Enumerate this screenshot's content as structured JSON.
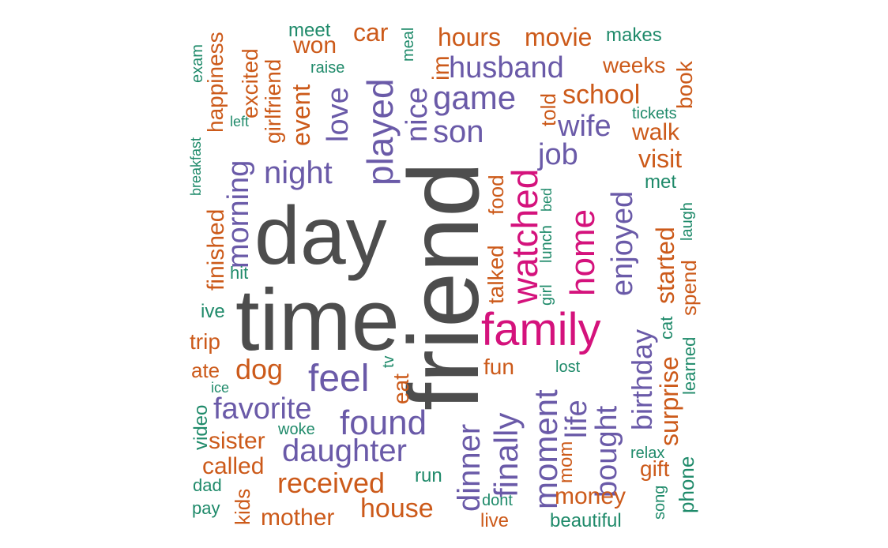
{
  "palette": {
    "gray": "#4d4d4d",
    "magenta": "#d4127c",
    "purple": "#6a5aa8",
    "orange": "#cc5a1a",
    "green": "#1f8a6a"
  },
  "words": [
    {
      "text": "friend",
      "color": "gray"
    },
    {
      "text": "time",
      "color": "gray"
    },
    {
      "text": "day",
      "color": "gray"
    },
    {
      "text": "family",
      "color": "magenta"
    },
    {
      "text": "watched",
      "color": "magenta"
    },
    {
      "text": "home",
      "color": "magenta"
    },
    {
      "text": "played",
      "color": "purple"
    },
    {
      "text": "night",
      "color": "purple"
    },
    {
      "text": "love",
      "color": "purple"
    },
    {
      "text": "nice",
      "color": "purple"
    },
    {
      "text": "game",
      "color": "purple"
    },
    {
      "text": "son",
      "color": "purple"
    },
    {
      "text": "husband",
      "color": "purple"
    },
    {
      "text": "wife",
      "color": "purple"
    },
    {
      "text": "job",
      "color": "purple"
    },
    {
      "text": "enjoyed",
      "color": "purple"
    },
    {
      "text": "morning",
      "color": "purple"
    },
    {
      "text": "feel",
      "color": "purple"
    },
    {
      "text": "found",
      "color": "purple"
    },
    {
      "text": "favorite",
      "color": "purple"
    },
    {
      "text": "daughter",
      "color": "purple"
    },
    {
      "text": "dinner",
      "color": "purple"
    },
    {
      "text": "finally",
      "color": "purple"
    },
    {
      "text": "moment",
      "color": "purple"
    },
    {
      "text": "life",
      "color": "purple"
    },
    {
      "text": "bought",
      "color": "purple"
    },
    {
      "text": "birthday",
      "color": "purple"
    },
    {
      "text": "car",
      "color": "orange"
    },
    {
      "text": "hours",
      "color": "orange"
    },
    {
      "text": "movie",
      "color": "orange"
    },
    {
      "text": "won",
      "color": "orange"
    },
    {
      "text": "weeks",
      "color": "orange"
    },
    {
      "text": "school",
      "color": "orange"
    },
    {
      "text": "book",
      "color": "orange"
    },
    {
      "text": "happiness",
      "color": "orange"
    },
    {
      "text": "excited",
      "color": "orange"
    },
    {
      "text": "girlfriend",
      "color": "orange"
    },
    {
      "text": "event",
      "color": "orange"
    },
    {
      "text": "im",
      "color": "orange"
    },
    {
      "text": "told",
      "color": "orange"
    },
    {
      "text": "walk",
      "color": "orange"
    },
    {
      "text": "visit",
      "color": "orange"
    },
    {
      "text": "finished",
      "color": "orange"
    },
    {
      "text": "food",
      "color": "orange"
    },
    {
      "text": "talked",
      "color": "orange"
    },
    {
      "text": "started",
      "color": "orange"
    },
    {
      "text": "spend",
      "color": "orange"
    },
    {
      "text": "trip",
      "color": "orange"
    },
    {
      "text": "ate",
      "color": "orange"
    },
    {
      "text": "dog",
      "color": "orange"
    },
    {
      "text": "eat",
      "color": "orange"
    },
    {
      "text": "fun",
      "color": "orange"
    },
    {
      "text": "surprise",
      "color": "orange"
    },
    {
      "text": "sister",
      "color": "orange"
    },
    {
      "text": "called",
      "color": "orange"
    },
    {
      "text": "received",
      "color": "orange"
    },
    {
      "text": "house",
      "color": "orange"
    },
    {
      "text": "mother",
      "color": "orange"
    },
    {
      "text": "kids",
      "color": "orange"
    },
    {
      "text": "mom",
      "color": "orange"
    },
    {
      "text": "money",
      "color": "orange"
    },
    {
      "text": "gift",
      "color": "orange"
    },
    {
      "text": "live",
      "color": "orange"
    },
    {
      "text": "meet",
      "color": "green"
    },
    {
      "text": "meal",
      "color": "green"
    },
    {
      "text": "makes",
      "color": "green"
    },
    {
      "text": "exam",
      "color": "green"
    },
    {
      "text": "raise",
      "color": "green"
    },
    {
      "text": "left",
      "color": "green"
    },
    {
      "text": "breakfast",
      "color": "green"
    },
    {
      "text": "tickets",
      "color": "green"
    },
    {
      "text": "met",
      "color": "green"
    },
    {
      "text": "laugh",
      "color": "green"
    },
    {
      "text": "bed",
      "color": "green"
    },
    {
      "text": "lunch",
      "color": "green"
    },
    {
      "text": "girl",
      "color": "green"
    },
    {
      "text": "hit",
      "color": "green"
    },
    {
      "text": "ive",
      "color": "green"
    },
    {
      "text": "cat",
      "color": "green"
    },
    {
      "text": "learned",
      "color": "green"
    },
    {
      "text": "tv",
      "color": "green"
    },
    {
      "text": "lost",
      "color": "green"
    },
    {
      "text": "ice",
      "color": "green"
    },
    {
      "text": "video",
      "color": "green"
    },
    {
      "text": "woke",
      "color": "green"
    },
    {
      "text": "relax",
      "color": "green"
    },
    {
      "text": "dad",
      "color": "green"
    },
    {
      "text": "run",
      "color": "green"
    },
    {
      "text": "pay",
      "color": "green"
    },
    {
      "text": "dont",
      "color": "green"
    },
    {
      "text": "song",
      "color": "green"
    },
    {
      "text": "phone",
      "color": "green"
    },
    {
      "text": "beautiful",
      "color": "green"
    }
  ]
}
